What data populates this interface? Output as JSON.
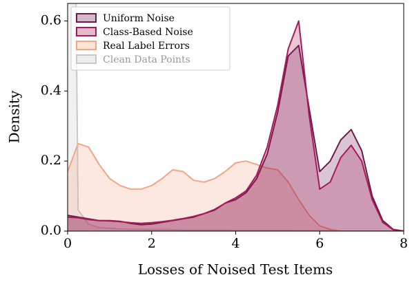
{
  "chart_data": {
    "type": "density",
    "xlabel": "Losses of Noised Test Items",
    "ylabel": "Density",
    "x": [
      0,
      0.25,
      0.5,
      0.75,
      1,
      1.25,
      1.5,
      1.75,
      2,
      2.25,
      2.5,
      2.75,
      3,
      3.25,
      3.5,
      3.75,
      4,
      4.25,
      4.5,
      4.75,
      5,
      5.25,
      5.5,
      5.75,
      6,
      6.25,
      6.5,
      6.75,
      7,
      7.25,
      7.5,
      7.75,
      8
    ],
    "series": [
      {
        "name": "Uniform Noise",
        "color": "#6a1b4d",
        "values": [
          0.045,
          0.04,
          0.035,
          0.03,
          0.03,
          0.028,
          0.022,
          0.018,
          0.02,
          0.025,
          0.03,
          0.035,
          0.04,
          0.05,
          0.06,
          0.08,
          0.09,
          0.11,
          0.15,
          0.22,
          0.34,
          0.5,
          0.53,
          0.35,
          0.17,
          0.2,
          0.26,
          0.29,
          0.23,
          0.1,
          0.03,
          0.005,
          0
        ]
      },
      {
        "name": "Class-Based Noise",
        "color": "#a8195a",
        "values": [
          0.04,
          0.038,
          0.033,
          0.03,
          0.029,
          0.027,
          0.024,
          0.022,
          0.024,
          0.027,
          0.031,
          0.036,
          0.042,
          0.05,
          0.062,
          0.08,
          0.095,
          0.115,
          0.16,
          0.24,
          0.36,
          0.52,
          0.6,
          0.33,
          0.12,
          0.14,
          0.21,
          0.245,
          0.2,
          0.09,
          0.025,
          0.004,
          0
        ]
      },
      {
        "name": "Real Label Errors",
        "color": "#f4a582",
        "values": [
          0.17,
          0.25,
          0.24,
          0.19,
          0.15,
          0.13,
          0.12,
          0.12,
          0.13,
          0.15,
          0.175,
          0.17,
          0.145,
          0.14,
          0.15,
          0.17,
          0.195,
          0.2,
          0.19,
          0.18,
          0.175,
          0.14,
          0.09,
          0.045,
          0.015,
          0.005,
          0,
          0,
          0,
          0,
          0,
          0,
          0
        ]
      },
      {
        "name": "Clean Data Points",
        "color": "#c8c8c8",
        "values": [
          3.0,
          0.06,
          0.02,
          0.01,
          0.008,
          0.006,
          0.005,
          0.005,
          0.004,
          0.004,
          0.004,
          0.003,
          0.003,
          0.003,
          0.003,
          0.003,
          0.002,
          0.002,
          0.002,
          0.002,
          0.002,
          0.002,
          0.001,
          0.001,
          0.001,
          0.001,
          0,
          0,
          0,
          0,
          0,
          0,
          0
        ]
      }
    ],
    "xlim": [
      0,
      8
    ],
    "xticks": [
      0,
      2,
      4,
      6,
      8
    ],
    "ylim": [
      0,
      0.65
    ],
    "yticks": [
      {
        "value": 0,
        "label": "0.0"
      },
      0.2,
      0.4,
      0.6
    ],
    "legend": "upper left"
  }
}
